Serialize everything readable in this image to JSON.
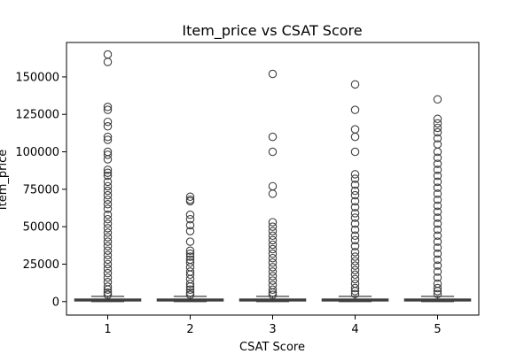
{
  "chart_data": {
    "type": "box",
    "title": "Item_price vs CSAT Score",
    "xlabel": "CSAT Score",
    "ylabel": "Item_price",
    "categories": [
      "1",
      "2",
      "3",
      "4",
      "5"
    ],
    "ylim": [
      -9000,
      173000
    ],
    "y_ticks": [
      0,
      25000,
      50000,
      75000,
      100000,
      125000,
      150000
    ],
    "y_tick_labels": [
      "0",
      "25000",
      "50000",
      "75000",
      "100000",
      "125000",
      "150000"
    ],
    "grid": false,
    "boxes": [
      {
        "category": "1",
        "median": 1000,
        "q1": 400,
        "q3": 1700,
        "whisker_low": 0,
        "whisker_high": 3500,
        "outliers": [
          165000,
          160000,
          130000,
          128000,
          120000,
          117000,
          110000,
          108000,
          100000,
          98000,
          95000,
          88000,
          86000,
          84000,
          80000,
          77000,
          74000,
          71000,
          68000,
          65000,
          62000,
          58000,
          55000,
          52000,
          49000,
          46000,
          43000,
          40000,
          37000,
          34000,
          31000,
          28000,
          25000,
          22000,
          19000,
          16000,
          13000,
          10000,
          8000,
          6000,
          4500
        ]
      },
      {
        "category": "2",
        "median": 1000,
        "q1": 400,
        "q3": 1700,
        "whisker_low": 0,
        "whisker_high": 3500,
        "outliers": [
          70000,
          68000,
          67000,
          58000,
          55000,
          51000,
          47000,
          40000,
          34000,
          32000,
          30000,
          28000,
          26000,
          23000,
          20000,
          18000,
          15000,
          12000,
          10000,
          8000,
          6000,
          4500
        ]
      },
      {
        "category": "3",
        "median": 1000,
        "q1": 400,
        "q3": 1700,
        "whisker_low": 0,
        "whisker_high": 3500,
        "outliers": [
          152000,
          110000,
          100000,
          77000,
          72000,
          53000,
          50000,
          47000,
          44000,
          41000,
          38000,
          35000,
          32000,
          29000,
          26000,
          23000,
          20000,
          17000,
          14000,
          11000,
          8000,
          6000,
          4500
        ]
      },
      {
        "category": "4",
        "median": 1000,
        "q1": 400,
        "q3": 1700,
        "whisker_low": 0,
        "whisker_high": 3500,
        "outliers": [
          145000,
          128000,
          115000,
          110000,
          100000,
          85000,
          82000,
          78000,
          74000,
          71000,
          67000,
          63000,
          59000,
          56000,
          52000,
          48000,
          44000,
          41000,
          37000,
          33000,
          30000,
          27000,
          24000,
          21000,
          18000,
          15000,
          12000,
          9000,
          7000,
          5000
        ]
      },
      {
        "category": "5",
        "median": 1000,
        "q1": 400,
        "q3": 1700,
        "whisker_low": 0,
        "whisker_high": 3500,
        "outliers": [
          135000,
          122000,
          119000,
          116000,
          113000,
          109000,
          105000,
          100000,
          96000,
          92000,
          88000,
          84000,
          80000,
          76000,
          72000,
          68000,
          64000,
          60000,
          56000,
          52000,
          48000,
          44000,
          40000,
          36000,
          32000,
          28000,
          24000,
          20000,
          16000,
          12000,
          9000,
          7000,
          5000
        ]
      }
    ]
  }
}
